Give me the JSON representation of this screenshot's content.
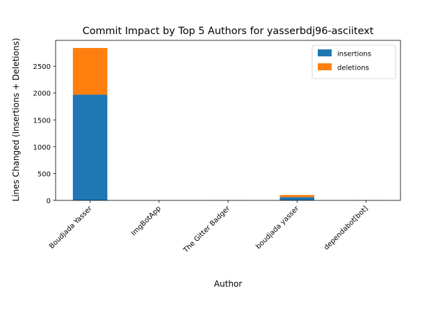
{
  "chart_data": {
    "type": "bar",
    "stacked": true,
    "title": "Commit Impact by Top 5 Authors for yasserbdj96-asciitext",
    "xlabel": "Author",
    "ylabel": "Lines Changed (Insertions + Deletions)",
    "categories": [
      "Boudjada Yasser",
      "ImgBotApp",
      "The Gitter Badger",
      "boudjada yasser",
      "dependabot[bot]"
    ],
    "series": [
      {
        "name": "insertions",
        "color": "#1f77b4",
        "values": [
          1970,
          0,
          2,
          60,
          1
        ]
      },
      {
        "name": "deletions",
        "color": "#ff7f0e",
        "values": [
          870,
          0,
          0,
          40,
          1
        ]
      }
    ],
    "ylim": [
      0,
      2982
    ],
    "yticks": [
      0,
      500,
      1000,
      1500,
      2000,
      2500
    ],
    "legend_position": "top-right",
    "grid": false
  }
}
